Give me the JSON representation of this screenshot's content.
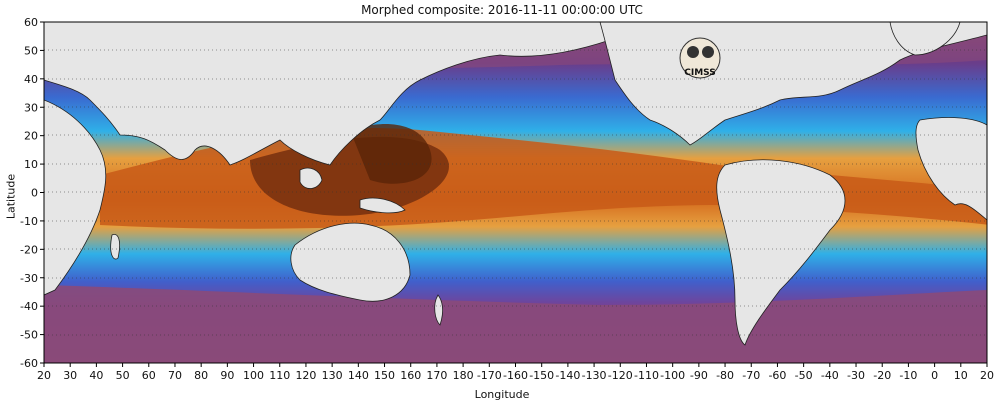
{
  "header": {
    "title": "Morphed composite: 2016-11-11  00:00:00 UTC"
  },
  "axes": {
    "xlabel": "Longitude",
    "ylabel": "Latitude",
    "x_ticks": [
      "20",
      "30",
      "40",
      "50",
      "60",
      "70",
      "80",
      "90",
      "100",
      "110",
      "120",
      "130",
      "140",
      "150",
      "160",
      "170",
      "180",
      "-170",
      "-160",
      "-150",
      "-140",
      "-130",
      "-120",
      "-110",
      "-100",
      "-90",
      "-80",
      "-70",
      "-60",
      "-50",
      "-40",
      "-30",
      "-20",
      "-10",
      "0",
      "10",
      "20"
    ],
    "y_ticks": [
      "60",
      "50",
      "40",
      "30",
      "20",
      "10",
      "0",
      "-10",
      "-20",
      "-30",
      "-40",
      "-50",
      "-60"
    ]
  },
  "logo": {
    "text": "CIMSS"
  },
  "colors": {
    "land": "#e6e6e6",
    "dry": "#8a4a78",
    "moist_low": "#4a4ab8",
    "moist_mid": "#2aa0e8",
    "moist_high": "#e08a2a",
    "very_moist": "#7a3210"
  }
}
